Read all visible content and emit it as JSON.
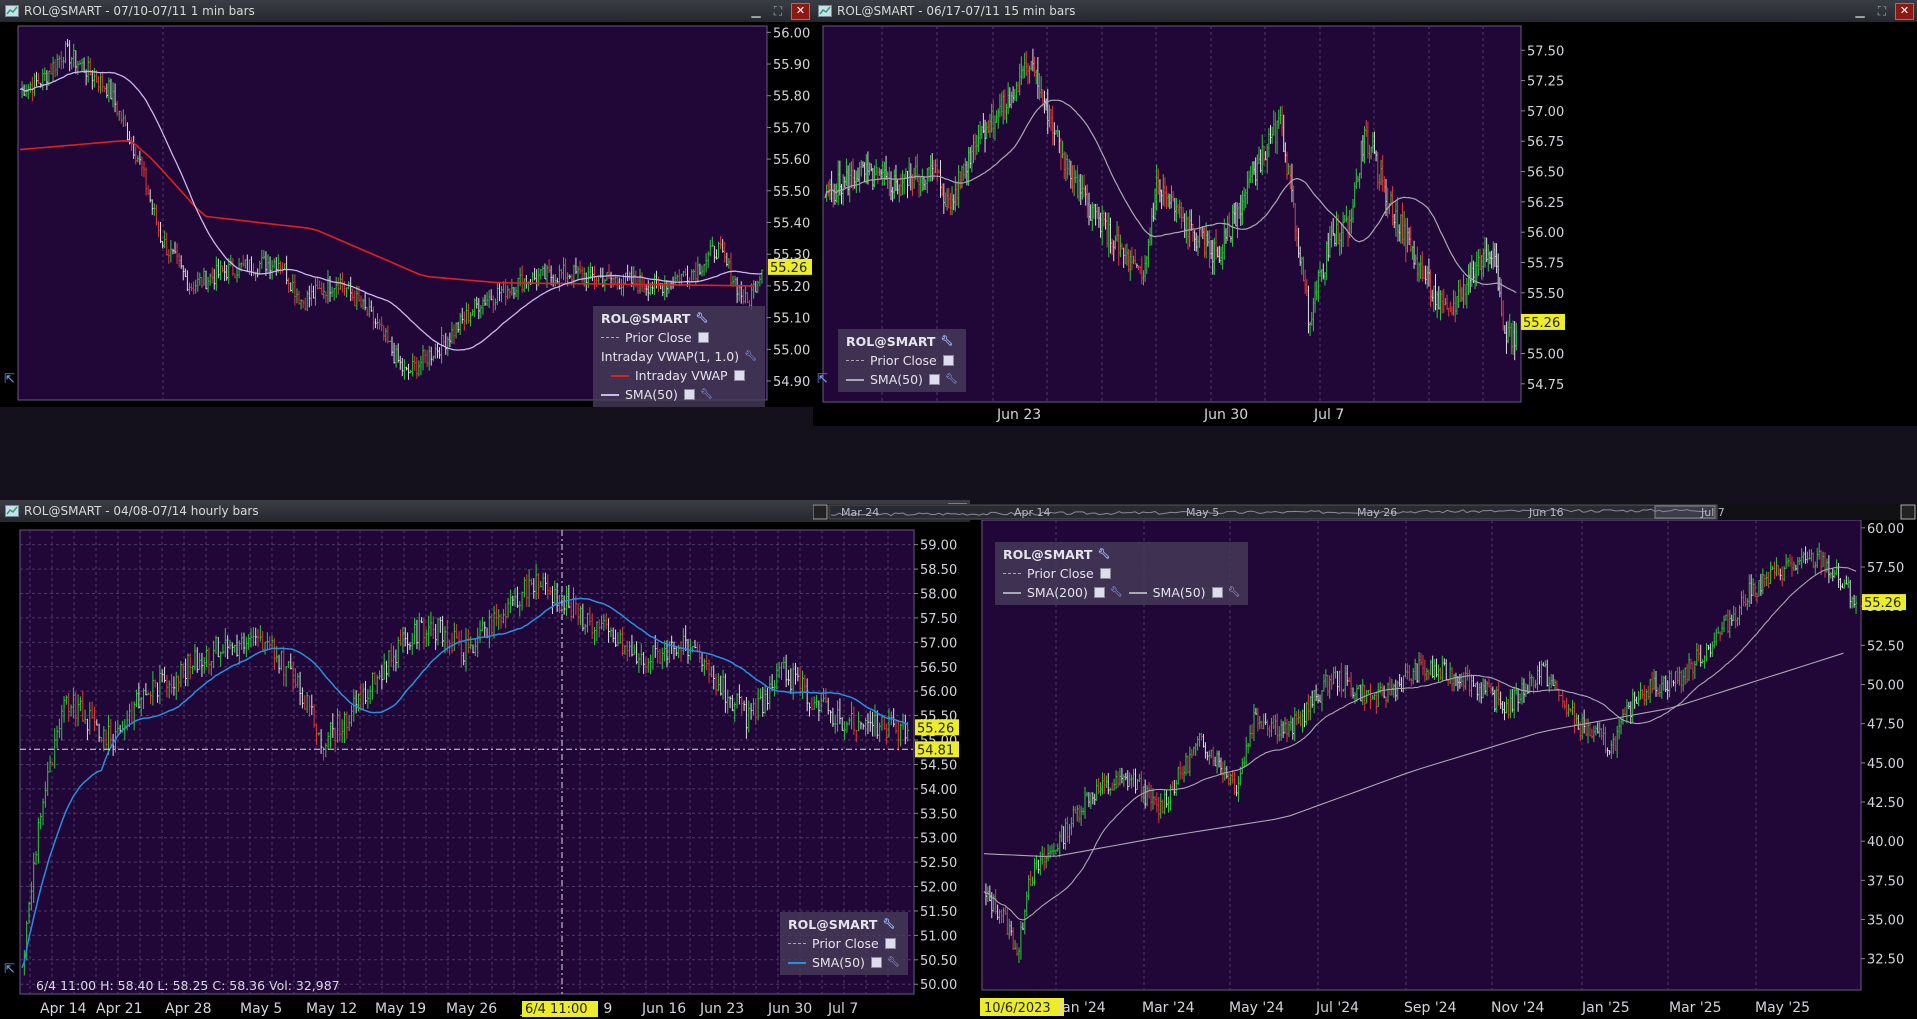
{
  "panels": {
    "p1": {
      "title": "ROL@SMART - 07/10-07/11 1 min bars",
      "y_ticks": [
        "56.00",
        "55.90",
        "55.80",
        "55.70",
        "55.60",
        "55.50",
        "55.40",
        "55.30",
        "55.20",
        "55.10",
        "55.00",
        "54.90"
      ],
      "last_price": "55.26",
      "legend": {
        "symbol": "ROL@SMART",
        "prior_close": "Prior Close",
        "vwap_study": "Intraday VWAP(1, 1.0)",
        "vwap_line": "Intraday VWAP",
        "sma": "SMA(50)"
      }
    },
    "p2": {
      "title": "ROL@SMART - 06/17-07/11 15 min bars",
      "y_ticks": [
        "57.50",
        "57.25",
        "57.00",
        "56.75",
        "56.50",
        "56.25",
        "56.00",
        "55.75",
        "55.50",
        "55.25",
        "55.00",
        "54.75"
      ],
      "last_price": "55.26",
      "x_ticks": [
        "Jun 23",
        "Jun 30",
        "Jul 7"
      ],
      "overview_ticks": [
        "Mar 24",
        "Apr 14",
        "May 5",
        "May 26",
        "Jun 16",
        "Jul 7"
      ],
      "legend": {
        "symbol": "ROL@SMART",
        "prior_close": "Prior Close",
        "sma": "SMA(50)"
      }
    },
    "p3": {
      "title": "ROL@SMART - 04/08-07/14 hourly bars",
      "y_ticks": [
        "59.00",
        "58.50",
        "58.00",
        "57.50",
        "57.00",
        "56.50",
        "56.00",
        "55.50",
        "55.00",
        "54.50",
        "54.00",
        "53.50",
        "53.00",
        "52.50",
        "52.00",
        "51.50",
        "51.00",
        "50.50",
        "50.00"
      ],
      "last_price": "55.26",
      "crosshair_price": "54.81",
      "crosshair_date": "6/4 11:00",
      "x_ticks": [
        "Apr 14",
        "Apr 21",
        "Apr 28",
        "May 5",
        "May 12",
        "May 19",
        "May 26",
        "Ju",
        "n 9",
        "Jun 16",
        "Jun 23",
        "Jun 30",
        "Jul 7"
      ],
      "status": "6/4 11:00   H: 58.40   L: 58.25   C: 58.36   Vol: 32,987",
      "legend": {
        "symbol": "ROL@SMART",
        "prior_close": "Prior Close",
        "sma": "SMA(50)"
      }
    },
    "p4": {
      "y_ticks": [
        "60.00",
        "57.50",
        "55.00",
        "52.50",
        "50.00",
        "47.50",
        "45.00",
        "42.50",
        "40.00",
        "37.50",
        "35.00",
        "32.50"
      ],
      "last_price": "55.26",
      "start_date": "10/6/2023",
      "x_ticks": [
        "Jan '24",
        "Mar '24",
        "May '24",
        "Jul '24",
        "Sep '24",
        "Nov '24",
        "Jan '25",
        "Mar '25",
        "May '25"
      ],
      "legend": {
        "symbol": "ROL@SMART",
        "prior_close": "Prior Close",
        "sma200": "SMA(200)",
        "sma50": "SMA(50)"
      }
    }
  },
  "colors": {
    "chart_bg": "#210738",
    "grid": "#4a3a66",
    "vwap": "#e0201c",
    "sma_lavender": "#c8b8f0",
    "sma_gray": "#a8a8b0",
    "sma_blue": "#2a8ee0",
    "up_bar": "#2ec83a",
    "down_bar": "#e03a3a",
    "price_tag": "#ecec2a"
  },
  "icons": {
    "app": "chart-window-icon",
    "minimize": "minimize-icon",
    "maximize": "maximize-icon",
    "close": "close-icon",
    "gear": "settings-wrench-icon",
    "checkbox": "checkbox-icon"
  }
}
